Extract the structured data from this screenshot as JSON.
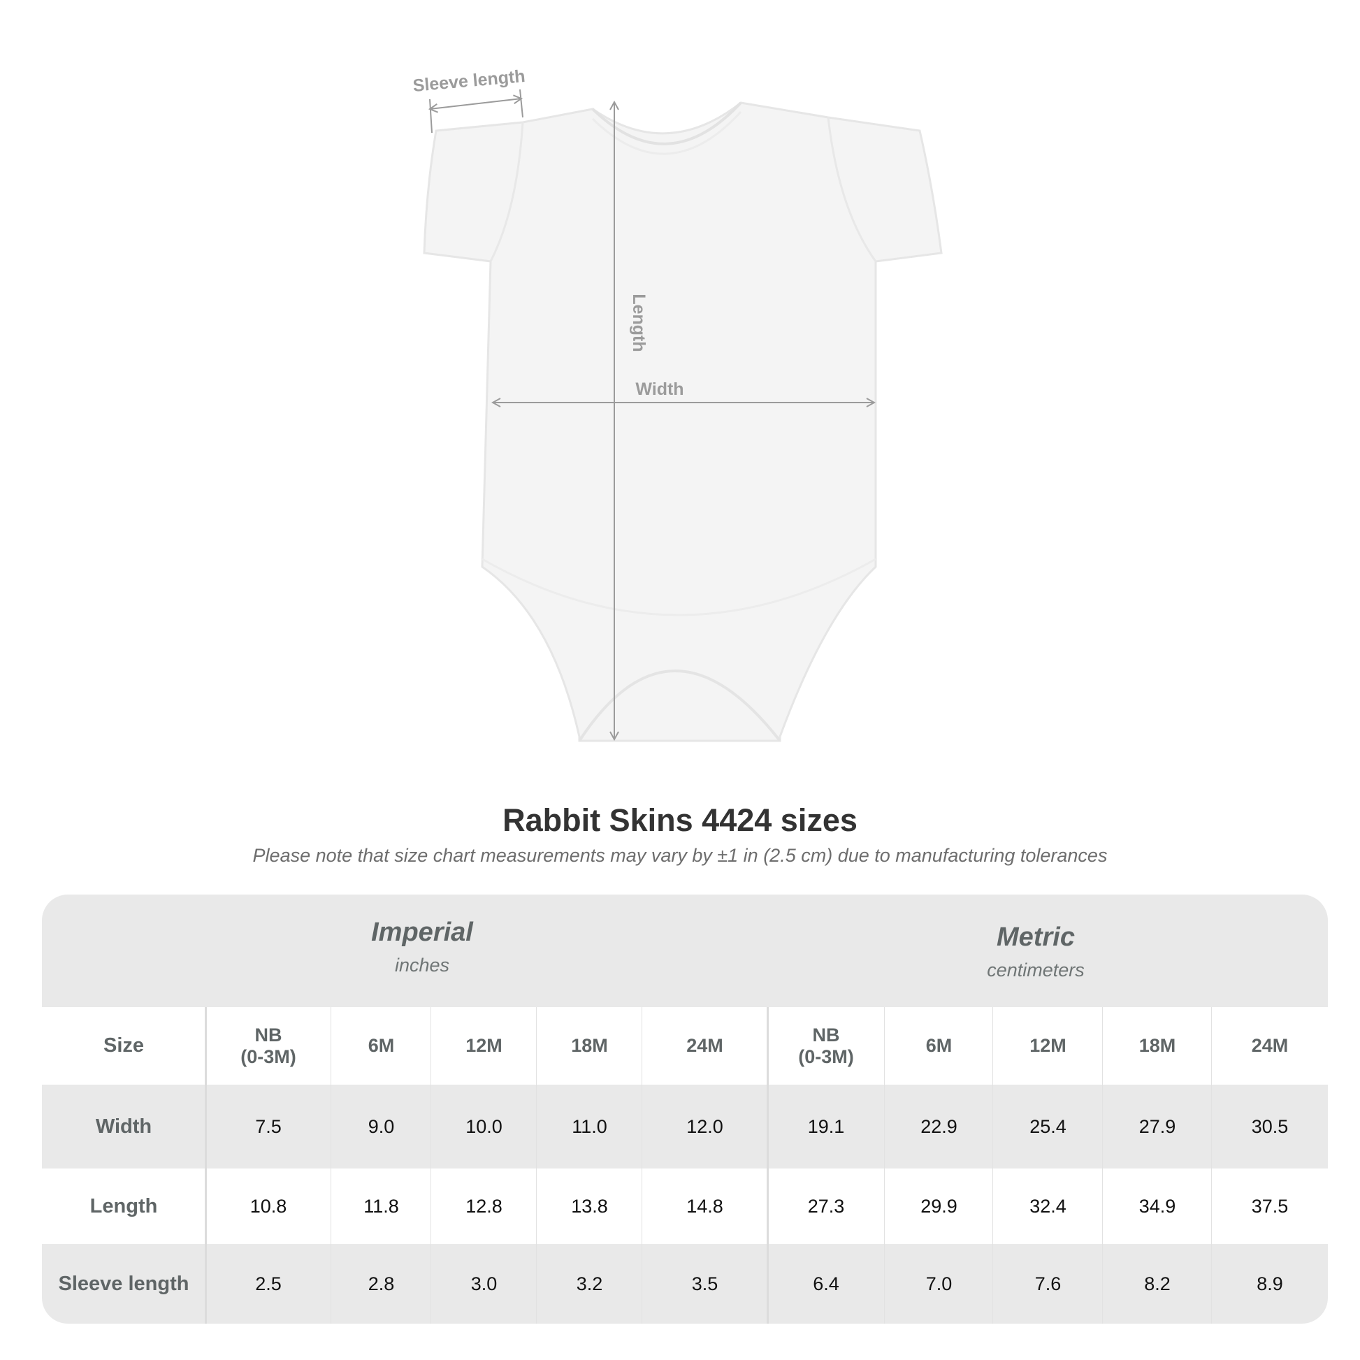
{
  "diagram": {
    "labels": {
      "sleeve_length": "Sleeve length",
      "length": "Length",
      "width": "Width"
    },
    "garment_color": "#f4f4f4",
    "arrow_color": "#9b9b9b"
  },
  "title": "Rabbit Skins 4424 sizes",
  "note": "Please note that size chart measurements may vary by ±1 in (2.5 cm) due to manufacturing tolerances",
  "table": {
    "imperial": {
      "title": "Imperial",
      "unit": "inches"
    },
    "metric": {
      "title": "Metric",
      "unit": "centimeters"
    },
    "size_label": "Size",
    "sizes": [
      "NB\n(0-3M)",
      "6M",
      "12M",
      "18M",
      "24M",
      "NB\n(0-3M)",
      "6M",
      "12M",
      "18M",
      "24M"
    ],
    "rows": [
      {
        "label": "Width",
        "values": [
          "7.5",
          "9.0",
          "10.0",
          "11.0",
          "12.0",
          "19.1",
          "22.9",
          "25.4",
          "27.9",
          "30.5"
        ]
      },
      {
        "label": "Length",
        "values": [
          "10.8",
          "11.8",
          "12.8",
          "13.8",
          "14.8",
          "27.3",
          "29.9",
          "32.4",
          "34.9",
          "37.5"
        ]
      },
      {
        "label": "Sleeve length",
        "values": [
          "2.5",
          "2.8",
          "3.0",
          "3.2",
          "3.5",
          "6.4",
          "7.0",
          "7.6",
          "8.2",
          "8.9"
        ]
      }
    ],
    "colors": {
      "band": "#e9e9e9",
      "header_text": "#5f6566"
    }
  }
}
